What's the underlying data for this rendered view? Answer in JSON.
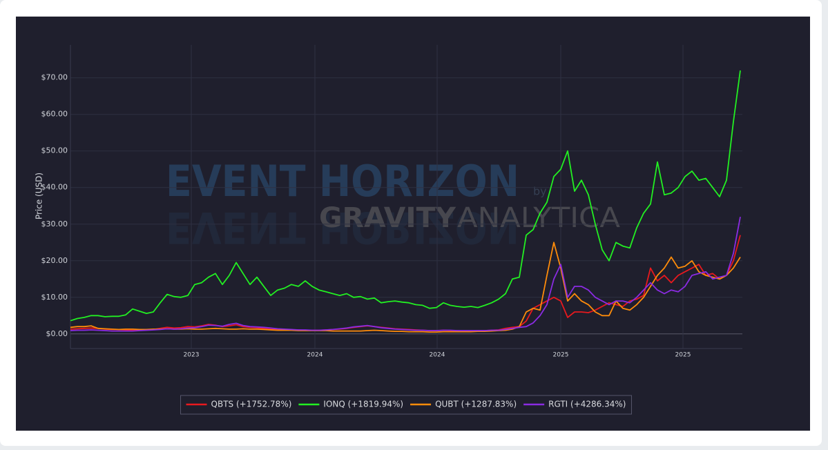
{
  "chart_data": {
    "type": "line",
    "watermark": {
      "title": "EVENT HORIZON",
      "by": "by",
      "brand": "GRAVITY",
      "brand_rest": "ANALYTICA"
    },
    "ylabel": "Price (USD)",
    "x": [
      0,
      1,
      2,
      3,
      4,
      5,
      6,
      7,
      8,
      9,
      10,
      11,
      12,
      13,
      14,
      15,
      16,
      17,
      18,
      19,
      20,
      21,
      22,
      23,
      24,
      25,
      26,
      27,
      28,
      29,
      30,
      31,
      32,
      33,
      34,
      35,
      36,
      37,
      38,
      39,
      40,
      41,
      42,
      43,
      44,
      45,
      46,
      47,
      48,
      49,
      50,
      51,
      52,
      53,
      54,
      55,
      56,
      57,
      58,
      59,
      60,
      61,
      62,
      63,
      64,
      65,
      66,
      67,
      68,
      69,
      70,
      71,
      72,
      73,
      74,
      75,
      76,
      77,
      78,
      79,
      80,
      81,
      82,
      83,
      84,
      85,
      86,
      87,
      88,
      89,
      90,
      91,
      92,
      93,
      94,
      95,
      96,
      97
    ],
    "xlim": [
      0,
      97.3
    ],
    "xticks": [
      {
        "value": 17.5,
        "label": "2023"
      },
      {
        "value": 35.4,
        "label": "2024"
      },
      {
        "value": 53.1,
        "label": "2024"
      },
      {
        "value": 71.0,
        "label": "2025"
      },
      {
        "value": 88.7,
        "label": "2025"
      }
    ],
    "ylim": [
      -4,
      79
    ],
    "yticks": [
      {
        "value": 0,
        "label": "$0.00"
      },
      {
        "value": 10,
        "label": "$10.00"
      },
      {
        "value": 20,
        "label": "$20.00"
      },
      {
        "value": 30,
        "label": "$30.00"
      },
      {
        "value": 40,
        "label": "$40.00"
      },
      {
        "value": 50,
        "label": "$50.00"
      },
      {
        "value": 60,
        "label": "$60.00"
      },
      {
        "value": 70,
        "label": "$70.00"
      }
    ],
    "grid": true,
    "legend": "bottom",
    "series": [
      {
        "name": "QBTS (+1752.78%)",
        "color": "#e8191e",
        "values": [
          1.3,
          1.4,
          1.5,
          1.6,
          1.5,
          1.3,
          1.2,
          1.2,
          1.1,
          1.0,
          1.0,
          1.1,
          1.2,
          1.5,
          1.8,
          1.6,
          1.7,
          2.0,
          1.9,
          2.2,
          2.6,
          2.4,
          2.0,
          2.2,
          2.5,
          2.0,
          1.8,
          1.7,
          1.5,
          1.3,
          1.2,
          1.2,
          1.1,
          1.1,
          1.0,
          1.0,
          1.0,
          1.1,
          1.2,
          1.3,
          1.5,
          1.8,
          2.0,
          2.2,
          2.0,
          1.8,
          1.6,
          1.4,
          1.3,
          1.2,
          1.1,
          1.0,
          0.9,
          0.9,
          1.0,
          0.9,
          0.9,
          0.8,
          0.8,
          0.9,
          0.9,
          1.0,
          1.1,
          1.5,
          1.8,
          2.0,
          3.5,
          7.0,
          8.0,
          9.0,
          10.0,
          9.0,
          4.5,
          6.0,
          6.0,
          5.8,
          6.5,
          7.5,
          8.5,
          8.0,
          7.5,
          9.0,
          9.5,
          10.5,
          18.0,
          14.5,
          16.0,
          14.0,
          16.0,
          17.0,
          18.0,
          19.0,
          16.0,
          16.5,
          15.0,
          16.0,
          20.0,
          27.0
        ]
      },
      {
        "name": "IONQ (+1819.94%)",
        "color": "#22f022",
        "values": [
          3.6,
          4.2,
          4.5,
          5.0,
          5.0,
          4.7,
          4.8,
          4.8,
          5.2,
          6.8,
          6.2,
          5.6,
          6.0,
          8.5,
          10.8,
          10.2,
          10.0,
          10.5,
          13.5,
          14.0,
          15.5,
          16.5,
          13.5,
          16.0,
          19.5,
          16.5,
          13.5,
          15.5,
          13.0,
          10.5,
          12.0,
          12.5,
          13.5,
          13.0,
          14.5,
          13.0,
          12.0,
          11.5,
          11.0,
          10.5,
          11.0,
          10.0,
          10.2,
          9.5,
          9.8,
          8.5,
          8.8,
          9.0,
          8.7,
          8.5,
          8.0,
          7.8,
          7.0,
          7.2,
          8.5,
          7.8,
          7.5,
          7.3,
          7.5,
          7.2,
          7.8,
          8.5,
          9.5,
          11.0,
          15.0,
          15.5,
          27.0,
          28.5,
          33.0,
          36.0,
          43.0,
          45.0,
          50.0,
          39.0,
          42.0,
          38.0,
          30.0,
          23.0,
          20.0,
          25.0,
          24.0,
          23.5,
          29.0,
          33.0,
          35.5,
          47.0,
          38.0,
          38.5,
          40.0,
          43.0,
          44.5,
          42.0,
          42.5,
          40.0,
          37.5,
          42.0,
          58.0,
          72.0
        ]
      },
      {
        "name": "QUBT (+1287.83%)",
        "color": "#ff8c0a",
        "values": [
          1.8,
          2.0,
          2.0,
          2.2,
          1.5,
          1.4,
          1.3,
          1.2,
          1.3,
          1.3,
          1.2,
          1.2,
          1.3,
          1.3,
          1.4,
          1.3,
          1.3,
          1.4,
          1.3,
          1.3,
          1.4,
          1.5,
          1.4,
          1.3,
          1.3,
          1.4,
          1.3,
          1.3,
          1.2,
          1.1,
          1.0,
          1.0,
          1.0,
          0.9,
          0.9,
          0.9,
          0.9,
          0.9,
          0.8,
          0.8,
          0.8,
          0.8,
          0.8,
          0.9,
          1.0,
          0.9,
          0.8,
          0.7,
          0.7,
          0.6,
          0.6,
          0.6,
          0.5,
          0.5,
          0.6,
          0.6,
          0.6,
          0.6,
          0.6,
          0.7,
          0.7,
          0.8,
          0.9,
          1.0,
          1.3,
          2.0,
          6.0,
          7.0,
          6.5,
          16.0,
          25.0,
          18.0,
          9.0,
          11.0,
          9.0,
          8.0,
          6.0,
          5.0,
          5.0,
          9.0,
          7.0,
          6.5,
          8.0,
          10.0,
          13.0,
          16.0,
          18.0,
          21.0,
          18.0,
          18.5,
          20.0,
          17.0,
          16.0,
          15.5,
          15.0,
          16.0,
          18.0,
          21.0
        ]
      },
      {
        "name": "RGTI (+4286.34%)",
        "color": "#8a2be2",
        "values": [
          0.9,
          1.0,
          1.0,
          1.1,
          1.0,
          0.9,
          0.8,
          0.8,
          0.8,
          0.8,
          0.9,
          1.0,
          1.1,
          1.2,
          1.4,
          1.3,
          1.4,
          1.6,
          1.7,
          2.0,
          2.4,
          2.3,
          2.1,
          2.6,
          2.9,
          2.3,
          2.0,
          1.9,
          1.8,
          1.6,
          1.4,
          1.3,
          1.2,
          1.1,
          1.1,
          1.0,
          1.0,
          1.1,
          1.2,
          1.4,
          1.6,
          1.9,
          2.1,
          2.3,
          2.0,
          1.7,
          1.5,
          1.3,
          1.2,
          1.1,
          1.0,
          1.0,
          0.9,
          0.9,
          1.0,
          1.0,
          0.9,
          0.9,
          0.9,
          0.9,
          0.9,
          1.0,
          1.0,
          1.2,
          1.5,
          1.8,
          2.0,
          3.0,
          5.0,
          8.0,
          15.0,
          19.0,
          10.0,
          13.0,
          13.0,
          12.0,
          10.0,
          9.0,
          8.0,
          9.0,
          9.0,
          8.5,
          10.0,
          12.0,
          14.0,
          12.0,
          11.0,
          12.0,
          11.5,
          13.0,
          16.0,
          16.5,
          17.0,
          15.0,
          15.5,
          16.0,
          22.0,
          32.0
        ]
      }
    ]
  }
}
